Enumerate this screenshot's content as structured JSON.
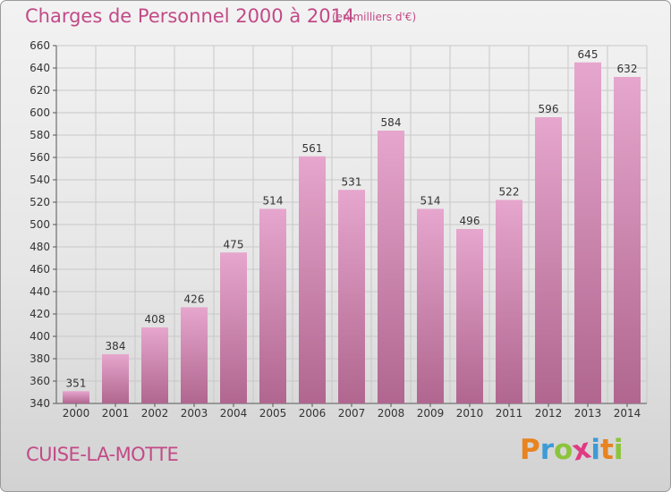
{
  "header": {
    "title": "Charges de Personnel 2000 à 2014",
    "subtitle": "(en milliers d'€)"
  },
  "footer": {
    "city": "CUISE-LA-MOTTE",
    "logo": {
      "letters": [
        "P",
        "r",
        "o",
        "x",
        "i",
        "t",
        "i"
      ],
      "colors": [
        "#e8831f",
        "#3f9bd6",
        "#8cc43c",
        "#e03a83",
        "#3f9bd6",
        "#e8831f",
        "#8cc43c"
      ]
    }
  },
  "colors": {
    "title": "#c24a87",
    "bar_top": "#e6a6cd",
    "bar_bottom": "#b0668f",
    "grid": "#c8c8c8"
  },
  "chart_data": {
    "type": "bar",
    "title": "Charges de Personnel 2000 à 2014",
    "subtitle": "(en milliers d'€)",
    "xlabel": "",
    "ylabel": "",
    "categories": [
      "2000",
      "2001",
      "2002",
      "2003",
      "2004",
      "2005",
      "2006",
      "2007",
      "2008",
      "2009",
      "2010",
      "2011",
      "2012",
      "2013",
      "2014"
    ],
    "values": [
      351,
      384,
      408,
      426,
      475,
      514,
      561,
      531,
      584,
      514,
      496,
      522,
      596,
      645,
      632
    ],
    "ylim": [
      340,
      660
    ],
    "yticks": [
      340,
      360,
      380,
      400,
      420,
      440,
      460,
      480,
      500,
      520,
      540,
      560,
      580,
      600,
      620,
      640,
      660
    ],
    "grid": true,
    "data_labels": true
  }
}
